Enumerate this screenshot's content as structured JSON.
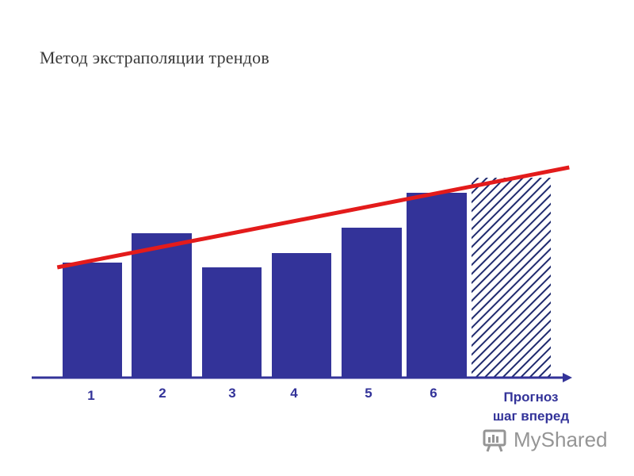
{
  "title": "Метод экстраполяции трендов",
  "chart_data": {
    "type": "bar",
    "categories": [
      "1",
      "2",
      "3",
      "4",
      "5",
      "6",
      "Прогноз шаг вперед"
    ],
    "forecast_label_lines": [
      "Прогноз",
      "шаг вперед"
    ],
    "values": [
      145,
      182,
      139,
      157,
      189,
      233,
      252
    ],
    "forecast_index": 6,
    "trend_line": {
      "x_start": 0.5,
      "y_start": 139,
      "x_end": 7.8,
      "y_end": 265
    },
    "ylim": [
      0,
      270
    ],
    "xlabel": "",
    "ylabel": "",
    "grid": false,
    "colors": {
      "bar": "#333399",
      "trend": "#e31b1b",
      "forecast_hatch": "#1f2a6e",
      "label": "#333399",
      "axis": "#333399"
    }
  },
  "watermark": {
    "text": "MyShared"
  }
}
